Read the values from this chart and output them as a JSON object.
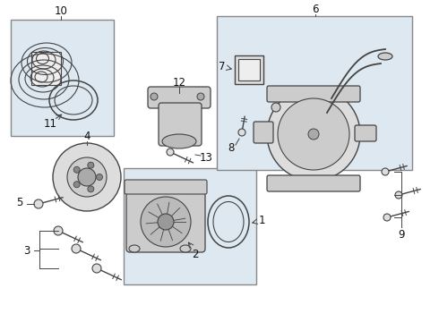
{
  "bg_color": "#ffffff",
  "box_bg": "#dde8f0",
  "line_color": "#444444",
  "part_color": "#aaaaaa",
  "font_size": 8.5,
  "font_color": "#111111"
}
